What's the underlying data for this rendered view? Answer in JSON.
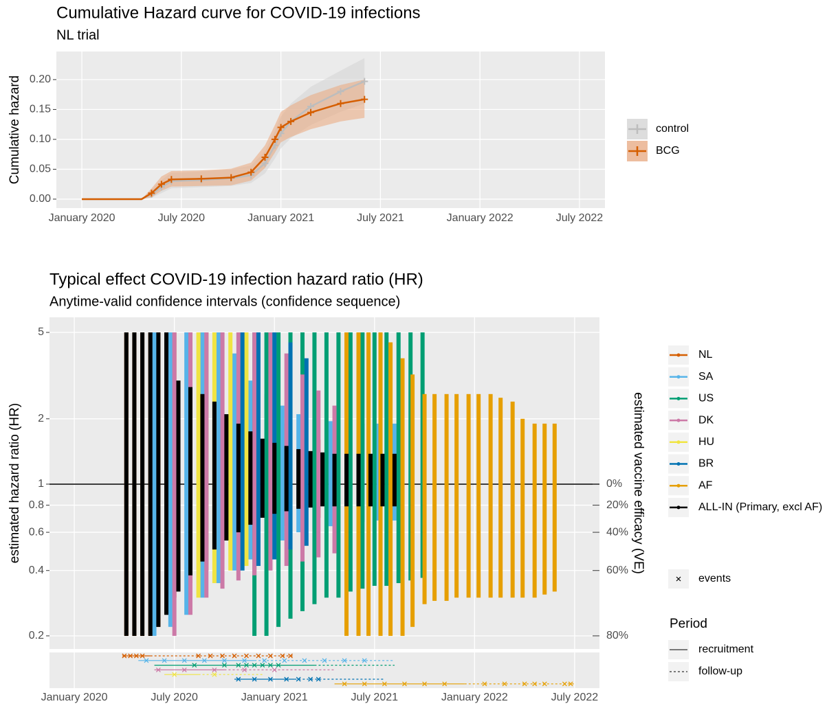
{
  "chart_data": [
    {
      "type": "line",
      "title": "Cumulative Hazard curve for COVID-19 infections",
      "subtitle": "NL trial",
      "y_label": "Cumulative hazard",
      "xlim": [
        2019.872,
        2022.628
      ],
      "ylim": [
        -0.015,
        0.247
      ],
      "xticks": [
        {
          "value": 2020,
          "label": "January 2020"
        },
        {
          "value": 2020.5,
          "label": "July 2020"
        },
        {
          "value": 2021,
          "label": "January 2021"
        },
        {
          "value": 2021.5,
          "label": "July 2021"
        },
        {
          "value": 2022,
          "label": "January 2022"
        },
        {
          "value": 2022.5,
          "label": "July 2022"
        }
      ],
      "yticks": [
        {
          "value": 0,
          "label": "0.00"
        },
        {
          "value": 0.05,
          "label": "0.05"
        },
        {
          "value": 0.1,
          "label": "0.10"
        },
        {
          "value": 0.15,
          "label": "0.15"
        },
        {
          "value": 0.2,
          "label": "0.20"
        }
      ],
      "grid": true,
      "series": [
        {
          "name": "control",
          "color": "#bdbdbd",
          "band_color": "#d4d4d4",
          "x": [
            2020.0,
            2020.3,
            2020.35,
            2020.4,
            2020.45,
            2020.6,
            2020.75,
            2020.85,
            2020.92,
            2020.97,
            2021.0,
            2021.05,
            2021.15,
            2021.3,
            2021.42
          ],
          "values": [
            0,
            0,
            0.008,
            0.02,
            0.03,
            0.032,
            0.035,
            0.04,
            0.06,
            0.09,
            0.11,
            0.13,
            0.155,
            0.18,
            0.197
          ],
          "lower": [
            0,
            0,
            0.002,
            0.01,
            0.018,
            0.02,
            0.022,
            0.027,
            0.043,
            0.068,
            0.085,
            0.102,
            0.124,
            0.146,
            0.16
          ],
          "upper": [
            0,
            0,
            0.016,
            0.032,
            0.044,
            0.046,
            0.05,
            0.056,
            0.08,
            0.114,
            0.138,
            0.16,
            0.188,
            0.215,
            0.236
          ]
        },
        {
          "name": "BCG",
          "color": "#d55e00",
          "band_color": "#eba77c",
          "x": [
            2020.0,
            2020.3,
            2020.35,
            2020.4,
            2020.45,
            2020.6,
            2020.75,
            2020.85,
            2020.92,
            2020.97,
            2021.0,
            2021.05,
            2021.15,
            2021.3,
            2021.42
          ],
          "values": [
            0,
            0,
            0.01,
            0.025,
            0.033,
            0.034,
            0.036,
            0.045,
            0.07,
            0.1,
            0.12,
            0.13,
            0.145,
            0.16,
            0.167
          ],
          "lower": [
            0,
            0,
            0.003,
            0.014,
            0.021,
            0.022,
            0.023,
            0.031,
            0.052,
            0.078,
            0.095,
            0.104,
            0.117,
            0.13,
            0.136
          ],
          "upper": [
            0,
            0,
            0.018,
            0.038,
            0.047,
            0.048,
            0.051,
            0.061,
            0.09,
            0.124,
            0.146,
            0.157,
            0.174,
            0.191,
            0.2
          ]
        }
      ]
    },
    {
      "type": "interval",
      "title": "Typical effect COVID-19 infection hazard ratio (HR)",
      "subtitle": "Anytime-valid confidence intervals (confidence sequence)",
      "y_label": "estimated hazard ratio (HR)",
      "y2_label": "estimated vaccine efficacy (VE)",
      "yscale": "log",
      "reference_line": 1,
      "xlim": [
        2019.876,
        2022.624
      ],
      "ylim": [
        0.174,
        5.87
      ],
      "xticks": [
        {
          "value": 2020,
          "label": "January 2020"
        },
        {
          "value": 2020.5,
          "label": "July 2020"
        },
        {
          "value": 2021,
          "label": "January 2021"
        },
        {
          "value": 2021.5,
          "label": "July 2021"
        },
        {
          "value": 2022,
          "label": "January 2022"
        },
        {
          "value": 2022.5,
          "label": "July 2022"
        }
      ],
      "yticks": [
        0.2,
        0.4,
        0.6,
        0.8,
        1,
        2,
        5
      ],
      "y2ticks": [
        {
          "value": 1,
          "label": "0%"
        },
        {
          "value": 0.8,
          "label": "20%"
        },
        {
          "value": 0.6,
          "label": "40%"
        },
        {
          "value": 0.4,
          "label": "60%"
        },
        {
          "value": 0.2,
          "label": "80%"
        }
      ],
      "grid": true,
      "events_label": "events",
      "period_title": "Period",
      "recruitment_label": "recruitment",
      "follow_up_label": "follow-up",
      "series": [
        {
          "name": "NL",
          "color": "#d55e00",
          "x": [
            2020.26,
            2020.3,
            2020.34,
            2020.38,
            2020.42,
            2020.5,
            2020.58,
            2020.66,
            2020.74,
            2020.82,
            2020.9,
            2020.98,
            2021.06,
            2021.14,
            2021.22
          ],
          "lower": [
            0.2,
            0.2,
            0.2,
            0.2,
            0.22,
            0.3,
            0.35,
            0.4,
            0.45,
            0.5,
            0.55,
            0.6,
            0.64,
            0.68,
            0.7
          ],
          "upper": [
            5,
            5,
            5,
            5,
            5,
            5,
            5,
            5,
            5,
            3.5,
            2.8,
            2.2,
            1.9,
            1.7,
            1.6
          ],
          "recruitment": [
            2020.24,
            2020.38
          ],
          "follow_up": [
            2020.38,
            2021.1
          ],
          "events": [
            2020.25,
            2020.28,
            2020.31,
            2020.34,
            2020.62,
            2020.68,
            2020.74,
            2020.8,
            2020.86,
            2020.92,
            2020.98,
            2021.04,
            2021.08
          ]
        },
        {
          "name": "SA",
          "color": "#56b4e9",
          "x": [
            2020.4,
            2020.48,
            2020.56,
            2020.64,
            2020.72,
            2020.8,
            2020.88,
            2020.96,
            2021.04,
            2021.12,
            2021.2,
            2021.28,
            2021.36,
            2021.44,
            2021.52,
            2021.6
          ],
          "lower": [
            0.2,
            0.22,
            0.25,
            0.3,
            0.35,
            0.4,
            0.45,
            0.5,
            0.55,
            0.6,
            0.62,
            0.64,
            0.66,
            0.67,
            0.68,
            0.68
          ],
          "upper": [
            5,
            5,
            5,
            5,
            5,
            4,
            3,
            2.6,
            2.3,
            2.1,
            2,
            1.95,
            1.92,
            1.9,
            1.9,
            1.9
          ],
          "recruitment": [
            2020.32,
            2020.9
          ],
          "follow_up": [
            2020.9,
            2021.6
          ],
          "events": [
            2020.36,
            2020.45,
            2020.55,
            2020.65,
            2020.75,
            2020.85,
            2020.95,
            2021.05,
            2021.15,
            2021.25,
            2021.35,
            2021.45
          ]
        },
        {
          "name": "US",
          "color": "#009e73",
          "x": [
            2020.9,
            2020.96,
            2021.02,
            2021.08,
            2021.14,
            2021.2,
            2021.26,
            2021.32,
            2021.38,
            2021.44,
            2021.5,
            2021.56,
            2021.62,
            2021.68,
            2021.74
          ],
          "lower": [
            0.2,
            0.2,
            0.22,
            0.24,
            0.26,
            0.28,
            0.3,
            0.3,
            0.32,
            0.33,
            0.34,
            0.34,
            0.35,
            0.36,
            0.37
          ],
          "upper": [
            5,
            5,
            5,
            5,
            5,
            5,
            5,
            5,
            5,
            5,
            5,
            5,
            5,
            5,
            5
          ],
          "recruitment": [
            2020.4,
            2021.2
          ],
          "follow_up": [
            2021.2,
            2021.6
          ],
          "events": [
            2020.6,
            2020.75,
            2020.82,
            2020.86,
            2020.9,
            2020.94,
            2020.98,
            2021.02
          ]
        },
        {
          "name": "DK",
          "color": "#cc79a7",
          "x": [
            2020.5,
            2020.58,
            2020.66,
            2020.74,
            2020.82,
            2020.9,
            2020.98,
            2021.06,
            2021.14,
            2021.22,
            2021.3
          ],
          "lower": [
            0.2,
            0.25,
            0.3,
            0.33,
            0.36,
            0.38,
            0.4,
            0.42,
            0.44,
            0.46,
            0.48
          ],
          "upper": [
            5,
            5,
            5,
            5,
            5,
            5,
            5,
            4,
            3.2,
            2.7,
            2.3
          ],
          "recruitment": [
            2020.4,
            2020.75
          ],
          "follow_up": [
            2020.75,
            2021.3
          ],
          "events": [
            2020.42,
            2020.55,
            2020.7,
            2020.85,
            2021.0
          ]
        },
        {
          "name": "HU",
          "color": "#f0e442",
          "x": [
            2020.62,
            2020.7,
            2020.78,
            2020.86
          ],
          "lower": [
            0.3,
            0.35,
            0.4,
            0.42
          ],
          "upper": [
            5,
            5,
            5,
            5
          ],
          "recruitment": [
            2020.45,
            2020.62
          ],
          "follow_up": [
            2020.62,
            2020.95
          ],
          "events": [
            2020.5,
            2020.7
          ]
        },
        {
          "name": "BR",
          "color": "#0072b2",
          "x": [
            2020.84,
            2020.92,
            2021.0,
            2021.08,
            2021.16
          ],
          "lower": [
            0.4,
            0.42,
            0.45,
            0.5,
            0.52
          ],
          "upper": [
            5,
            5,
            5,
            4.5,
            3.8
          ],
          "recruitment": [
            2020.8,
            2021.1
          ],
          "follow_up": [
            2021.1,
            2021.55
          ],
          "events": [
            2020.82,
            2020.9,
            2020.98,
            2021.06,
            2021.12,
            2021.18,
            2021.22
          ]
        },
        {
          "name": "AF",
          "color": "#e69f00",
          "x": [
            2021.36,
            2021.42,
            2021.47,
            2021.53,
            2021.58,
            2021.64,
            2021.69,
            2021.75,
            2021.8,
            2021.86,
            2021.91,
            2021.97,
            2022.02,
            2022.08,
            2022.13,
            2022.19,
            2022.24,
            2022.3,
            2022.35,
            2022.4
          ],
          "lower": [
            0.2,
            0.2,
            0.2,
            0.2,
            0.2,
            0.2,
            0.22,
            0.28,
            0.29,
            0.29,
            0.3,
            0.3,
            0.3,
            0.3,
            0.3,
            0.3,
            0.3,
            0.3,
            0.31,
            0.32
          ],
          "upper": [
            5,
            5,
            5,
            5,
            4.5,
            3.8,
            3.2,
            2.6,
            2.6,
            2.6,
            2.6,
            2.6,
            2.6,
            2.6,
            2.5,
            2.4,
            2.0,
            1.9,
            1.9,
            1.9
          ],
          "recruitment": [
            2021.3,
            2021.95
          ],
          "follow_up": [
            2021.95,
            2022.5
          ],
          "events": [
            2021.35,
            2021.45,
            2021.55,
            2021.65,
            2021.75,
            2021.85,
            2022.05,
            2022.15,
            2022.25,
            2022.3,
            2022.35,
            2022.45,
            2022.48
          ]
        },
        {
          "name": "ALL-IN (Primary, excl AF)",
          "color": "#000000",
          "x": [
            2020.26,
            2020.3,
            2020.34,
            2020.38,
            2020.42,
            2020.46,
            2020.52,
            2020.58,
            2020.64,
            2020.7,
            2020.76,
            2020.82,
            2020.88,
            2020.94,
            2021.0,
            2021.06,
            2021.12,
            2021.18,
            2021.24,
            2021.3,
            2021.36,
            2021.42,
            2021.48,
            2021.54,
            2021.6
          ],
          "lower": [
            0.2,
            0.2,
            0.2,
            0.2,
            0.22,
            0.25,
            0.32,
            0.38,
            0.44,
            0.5,
            0.55,
            0.6,
            0.65,
            0.7,
            0.73,
            0.75,
            0.77,
            0.78,
            0.79,
            0.79,
            0.79,
            0.79,
            0.79,
            0.79,
            0.79
          ],
          "upper": [
            5,
            5,
            5,
            5,
            5,
            5,
            3,
            2.8,
            2.6,
            2.4,
            2.1,
            1.9,
            1.75,
            1.62,
            1.55,
            1.5,
            1.45,
            1.42,
            1.4,
            1.38,
            1.38,
            1.38,
            1.38,
            1.38,
            1.38
          ]
        }
      ]
    }
  ]
}
